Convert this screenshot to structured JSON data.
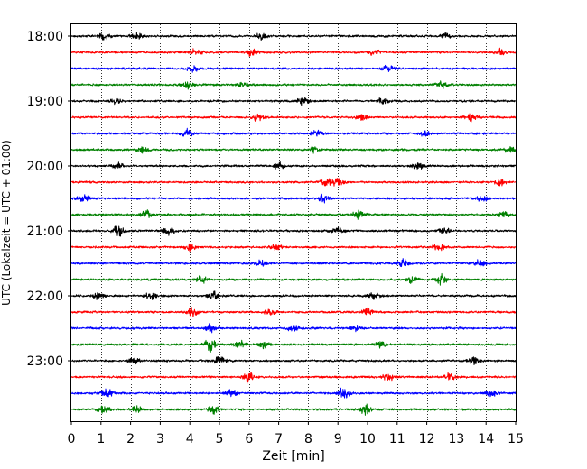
{
  "chart_data": {
    "type": "line",
    "title": "",
    "xlabel": "Zeit  [min]",
    "ylabel": "UTC (Lokalzeit = UTC + 01:00)",
    "xlim": [
      0,
      15
    ],
    "x_ticks": [
      0,
      1,
      2,
      3,
      4,
      5,
      6,
      7,
      8,
      9,
      10,
      11,
      12,
      13,
      14,
      15
    ],
    "x_tick_labels": [
      "0",
      "1",
      "2",
      "3",
      "4",
      "5",
      "6",
      "7",
      "8",
      "9",
      "10",
      "11",
      "12",
      "13",
      "14",
      "15"
    ],
    "y_tick_labels": [
      "18:00",
      "19:00",
      "20:00",
      "21:00",
      "22:00",
      "23:00"
    ],
    "grid": "vertical dotted lines at each minute",
    "trace_colors": [
      "#000000",
      "#ff0000",
      "#0000ff",
      "#008000"
    ],
    "rows": [
      {
        "time": "18:00",
        "color": "#000000"
      },
      {
        "time": "18:15",
        "color": "#ff0000"
      },
      {
        "time": "18:30",
        "color": "#0000ff"
      },
      {
        "time": "18:45",
        "color": "#008000"
      },
      {
        "time": "19:00",
        "color": "#000000"
      },
      {
        "time": "19:15",
        "color": "#ff0000"
      },
      {
        "time": "19:30",
        "color": "#0000ff"
      },
      {
        "time": "19:45",
        "color": "#008000"
      },
      {
        "time": "20:00",
        "color": "#000000"
      },
      {
        "time": "20:15",
        "color": "#ff0000"
      },
      {
        "time": "20:30",
        "color": "#0000ff"
      },
      {
        "time": "20:45",
        "color": "#008000"
      },
      {
        "time": "21:00",
        "color": "#000000"
      },
      {
        "time": "21:15",
        "color": "#ff0000"
      },
      {
        "time": "21:30",
        "color": "#0000ff"
      },
      {
        "time": "21:45",
        "color": "#008000"
      },
      {
        "time": "22:00",
        "color": "#000000"
      },
      {
        "time": "22:15",
        "color": "#ff0000"
      },
      {
        "time": "22:30",
        "color": "#0000ff"
      },
      {
        "time": "22:45",
        "color": "#008000"
      },
      {
        "time": "23:00",
        "color": "#000000"
      },
      {
        "time": "23:15",
        "color": "#ff0000"
      },
      {
        "time": "23:30",
        "color": "#0000ff"
      },
      {
        "time": "23:45",
        "color": "#008000"
      }
    ],
    "bursts": [
      {
        "row": 0,
        "at": 1.1,
        "amp": 1.4
      },
      {
        "row": 0,
        "at": 2.2,
        "amp": 1.3
      },
      {
        "row": 0,
        "at": 6.4,
        "amp": 1.2
      },
      {
        "row": 0,
        "at": 12.6,
        "amp": 1.1
      },
      {
        "row": 1,
        "at": 4.2,
        "amp": 1.6
      },
      {
        "row": 1,
        "at": 6.1,
        "amp": 1.3
      },
      {
        "row": 1,
        "at": 10.2,
        "amp": 1.2
      },
      {
        "row": 1,
        "at": 14.5,
        "amp": 1.2
      },
      {
        "row": 2,
        "at": 4.1,
        "amp": 1.2
      },
      {
        "row": 2,
        "at": 10.7,
        "amp": 1.1
      },
      {
        "row": 3,
        "at": 3.9,
        "amp": 1.3
      },
      {
        "row": 3,
        "at": 5.8,
        "amp": 1.2
      },
      {
        "row": 3,
        "at": 12.5,
        "amp": 1.1
      },
      {
        "row": 4,
        "at": 1.5,
        "amp": 1.2
      },
      {
        "row": 4,
        "at": 7.8,
        "amp": 1.4
      },
      {
        "row": 4,
        "at": 10.5,
        "amp": 1.2
      },
      {
        "row": 5,
        "at": 6.3,
        "amp": 1.3
      },
      {
        "row": 5,
        "at": 9.8,
        "amp": 1.2
      },
      {
        "row": 5,
        "at": 13.5,
        "amp": 1.3
      },
      {
        "row": 6,
        "at": 3.9,
        "amp": 1.4
      },
      {
        "row": 6,
        "at": 8.3,
        "amp": 1.2
      },
      {
        "row": 6,
        "at": 12.0,
        "amp": 1.3
      },
      {
        "row": 7,
        "at": 2.4,
        "amp": 1.3
      },
      {
        "row": 7,
        "at": 8.2,
        "amp": 1.2
      },
      {
        "row": 7,
        "at": 14.8,
        "amp": 1.3
      },
      {
        "row": 8,
        "at": 1.6,
        "amp": 1.2
      },
      {
        "row": 8,
        "at": 7.0,
        "amp": 1.2
      },
      {
        "row": 8,
        "at": 11.7,
        "amp": 1.2
      },
      {
        "row": 9,
        "at": 8.6,
        "amp": 1.3
      },
      {
        "row": 9,
        "at": 9.0,
        "amp": 1.5
      },
      {
        "row": 9,
        "at": 14.5,
        "amp": 1.4
      },
      {
        "row": 10,
        "at": 0.4,
        "amp": 1.4
      },
      {
        "row": 10,
        "at": 8.5,
        "amp": 1.5
      },
      {
        "row": 10,
        "at": 13.9,
        "amp": 1.3
      },
      {
        "row": 11,
        "at": 2.5,
        "amp": 1.6
      },
      {
        "row": 11,
        "at": 9.7,
        "amp": 1.6
      },
      {
        "row": 11,
        "at": 14.6,
        "amp": 1.2
      },
      {
        "row": 12,
        "at": 1.6,
        "amp": 2.0
      },
      {
        "row": 12,
        "at": 3.3,
        "amp": 1.9
      },
      {
        "row": 12,
        "at": 9.0,
        "amp": 1.5
      },
      {
        "row": 12,
        "at": 12.6,
        "amp": 1.2
      },
      {
        "row": 13,
        "at": 4.0,
        "amp": 1.2
      },
      {
        "row": 13,
        "at": 6.9,
        "amp": 1.4
      },
      {
        "row": 13,
        "at": 12.4,
        "amp": 1.2
      },
      {
        "row": 14,
        "at": 6.4,
        "amp": 1.3
      },
      {
        "row": 14,
        "at": 11.2,
        "amp": 1.5
      },
      {
        "row": 14,
        "at": 13.8,
        "amp": 1.3
      },
      {
        "row": 15,
        "at": 4.4,
        "amp": 1.2
      },
      {
        "row": 15,
        "at": 11.5,
        "amp": 1.3
      },
      {
        "row": 15,
        "at": 12.5,
        "amp": 1.9
      },
      {
        "row": 16,
        "at": 0.9,
        "amp": 1.3
      },
      {
        "row": 16,
        "at": 2.7,
        "amp": 1.5
      },
      {
        "row": 16,
        "at": 4.8,
        "amp": 1.3
      },
      {
        "row": 16,
        "at": 10.2,
        "amp": 1.2
      },
      {
        "row": 17,
        "at": 4.1,
        "amp": 1.5
      },
      {
        "row": 17,
        "at": 6.7,
        "amp": 1.4
      },
      {
        "row": 17,
        "at": 10.0,
        "amp": 1.3
      },
      {
        "row": 18,
        "at": 4.7,
        "amp": 1.4
      },
      {
        "row": 18,
        "at": 7.5,
        "amp": 1.2
      },
      {
        "row": 18,
        "at": 9.6,
        "amp": 1.3
      },
      {
        "row": 19,
        "at": 4.7,
        "amp": 2.4
      },
      {
        "row": 19,
        "at": 5.7,
        "amp": 1.6
      },
      {
        "row": 19,
        "at": 6.5,
        "amp": 1.6
      },
      {
        "row": 19,
        "at": 10.4,
        "amp": 1.3
      },
      {
        "row": 20,
        "at": 2.1,
        "amp": 1.3
      },
      {
        "row": 20,
        "at": 5.0,
        "amp": 1.4
      },
      {
        "row": 20,
        "at": 13.6,
        "amp": 1.5
      },
      {
        "row": 21,
        "at": 6.0,
        "amp": 2.1
      },
      {
        "row": 21,
        "at": 10.7,
        "amp": 1.2
      },
      {
        "row": 21,
        "at": 12.8,
        "amp": 1.3
      },
      {
        "row": 22,
        "at": 1.2,
        "amp": 1.7
      },
      {
        "row": 22,
        "at": 5.4,
        "amp": 1.4
      },
      {
        "row": 22,
        "at": 9.2,
        "amp": 2.0
      },
      {
        "row": 22,
        "at": 14.2,
        "amp": 1.4
      },
      {
        "row": 23,
        "at": 1.1,
        "amp": 1.6
      },
      {
        "row": 23,
        "at": 2.2,
        "amp": 1.5
      },
      {
        "row": 23,
        "at": 4.8,
        "amp": 1.6
      },
      {
        "row": 23,
        "at": 9.9,
        "amp": 2.1
      }
    ]
  }
}
